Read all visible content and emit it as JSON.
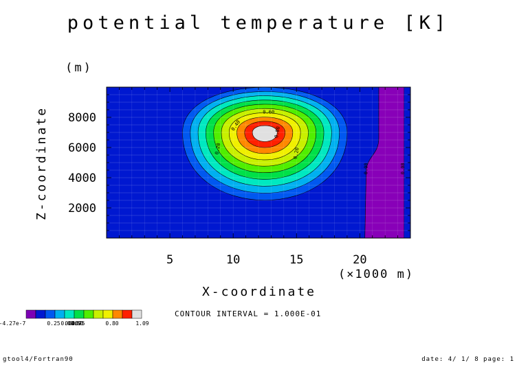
{
  "chart_data": {
    "type": "heatmap",
    "title": "potential temperature [K]",
    "xlabel": "X-coordinate",
    "ylabel": "Z-coordinate",
    "x_unit": "(×1000 m)",
    "y_unit": "(m)",
    "xlim": [
      0,
      24
    ],
    "ylim": [
      0,
      10000
    ],
    "x_ticks": [
      5,
      10,
      15,
      20
    ],
    "y_ticks": [
      2000,
      4000,
      6000,
      8000
    ],
    "x_tick_labels": [
      "5",
      "10",
      "15",
      "20"
    ],
    "y_tick_labels": [
      "2000",
      "4000",
      "6000",
      "8000"
    ],
    "grid": true,
    "bubble": {
      "center_x": 12.5,
      "center_z": 7000,
      "peak": 1.09,
      "radius_x_km": 6.5,
      "radius_z_m_up": 3000,
      "radius_z_m_down": 4500
    },
    "boundary_region": {
      "x_start_low": 20.4,
      "x_start_high": 21.5,
      "z_step": 5500,
      "x_end": 23.5,
      "value": -4.27e-07,
      "color": "#8800b8"
    },
    "contour_labels": [
      {
        "text": "0.20",
        "x": 8.9,
        "z": 5900,
        "angle": -80
      },
      {
        "text": "0.40",
        "x": 10.3,
        "z": 7400,
        "angle": -55
      },
      {
        "text": "0.60",
        "x": 12.8,
        "z": 8250,
        "angle": 0
      },
      {
        "text": "0.80",
        "x": 13.6,
        "z": 7000,
        "angle": -80
      },
      {
        "text": "0.20",
        "x": 15.1,
        "z": 5600,
        "angle": -80
      },
      {
        "text": "0.00",
        "x": 20.6,
        "z": 4600,
        "angle": -90
      },
      {
        "text": "0.00",
        "x": 23.5,
        "z": 4600,
        "angle": -90
      }
    ],
    "levels": [
      -4.27e-07,
      0.0,
      0.1,
      0.2,
      0.3,
      0.4,
      0.5,
      0.6,
      0.7,
      0.8,
      0.9,
      1.0,
      1.09
    ],
    "colors": [
      "#7d00b5",
      "#0018d0",
      "#0058f0",
      "#00b0f0",
      "#00e8c0",
      "#00e048",
      "#50ee00",
      "#c8f000",
      "#f0f000",
      "#ff8800",
      "#ff2000",
      "#e0e0e0"
    ],
    "legend_labels": [
      "-4.27e-7",
      "0.25",
      "0.50",
      "0.80",
      "1.09"
    ],
    "legend_overlap_labels": [
      "0.00",
      "0.40",
      "0.60",
      "0.75"
    ],
    "contour_interval": "CONTOUR INTERVAL = 1.000E-01"
  },
  "footer": {
    "left": "gtool4/Fortran90",
    "right": "date: 4/ 1/ 8 page: 1"
  }
}
